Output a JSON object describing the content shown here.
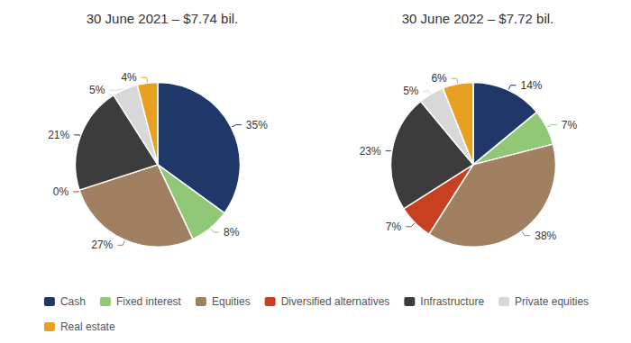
{
  "chart_data": [
    {
      "type": "pie",
      "title": "30 June 2021 – $7.74 bil.",
      "categories": [
        "Cash",
        "Fixed interest",
        "Equities",
        "Diversified alternatives",
        "Infrastructure",
        "Private equities",
        "Real estate"
      ],
      "values": [
        35,
        8,
        27,
        0,
        21,
        5,
        4
      ],
      "value_labels": [
        "35%",
        "8%",
        "27%",
        "0%",
        "21%",
        "5%",
        "4%"
      ],
      "colors": [
        "#1f3869",
        "#90c878",
        "#a08060",
        "#c84020",
        "#3c3c3c",
        "#d8d8d8",
        "#e8a020"
      ],
      "data_labels": true,
      "legend": "bottom"
    },
    {
      "type": "pie",
      "title": "30 June 2022 – $7.72 bil.",
      "categories": [
        "Cash",
        "Fixed interest",
        "Equities",
        "Diversified alternatives",
        "Infrastructure",
        "Private equities",
        "Real estate"
      ],
      "values": [
        14,
        7,
        38,
        7,
        23,
        5,
        6
      ],
      "value_labels": [
        "14%",
        "7%",
        "38%",
        "7%",
        "23%",
        "5%",
        "6%"
      ],
      "colors": [
        "#1f3869",
        "#90c878",
        "#a08060",
        "#c84020",
        "#3c3c3c",
        "#d8d8d8",
        "#e8a020"
      ],
      "data_labels": true,
      "legend": "bottom"
    }
  ]
}
